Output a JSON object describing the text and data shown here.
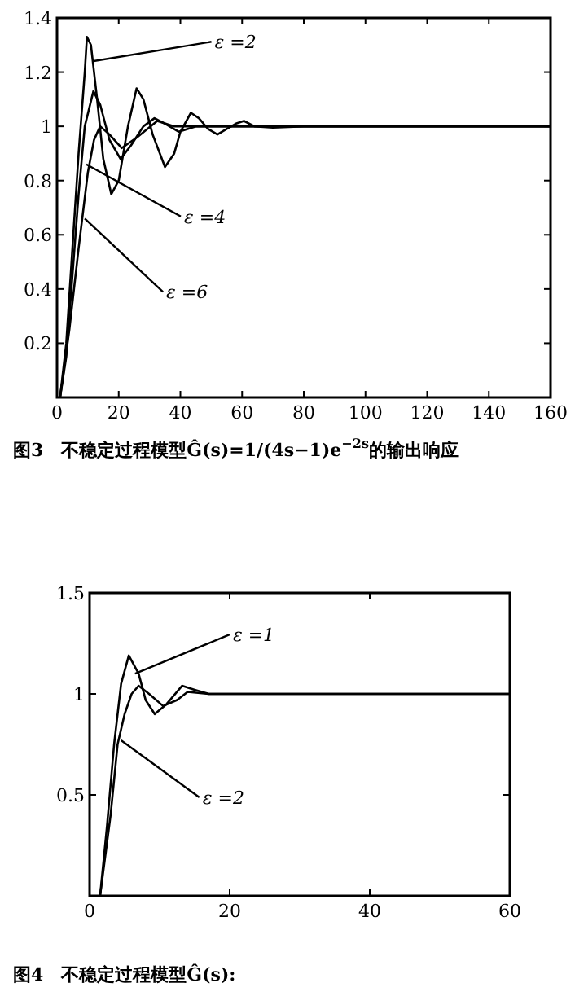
{
  "chart_data": [
    {
      "type": "line",
      "xlim": [
        0,
        160
      ],
      "xticks": [
        0,
        20,
        40,
        60,
        80,
        100,
        120,
        140,
        160
      ],
      "ylim": [
        0,
        1.4
      ],
      "yticks": [
        0.2,
        0.4,
        0.6,
        0.8,
        1,
        1.2,
        1.4
      ],
      "grid": false,
      "legend": false,
      "series": [
        {
          "color": "#000000",
          "x": [
            1,
            3,
            5,
            7,
            9,
            9.7,
            11,
            13,
            15,
            17.6,
            20,
            23,
            25.8,
            28,
            31,
            35,
            38,
            40,
            43.4,
            46,
            49,
            52,
            55,
            58,
            60.6,
            64,
            70,
            80,
            160
          ],
          "values": [
            0,
            0.2,
            0.55,
            0.9,
            1.2,
            1.33,
            1.3,
            1.1,
            0.88,
            0.75,
            0.8,
            1.0,
            1.14,
            1.1,
            0.97,
            0.85,
            0.9,
            0.98,
            1.05,
            1.03,
            0.99,
            0.97,
            0.99,
            1.01,
            1.02,
            1.0,
            0.995,
            1,
            1
          ]
        },
        {
          "color": "#000000",
          "x": [
            1,
            3,
            5,
            7,
            9,
            11.8,
            14,
            17,
            20.6,
            24,
            28,
            31.6,
            35,
            39.5,
            45,
            55,
            160
          ],
          "values": [
            0,
            0.15,
            0.45,
            0.75,
            1.0,
            1.13,
            1.08,
            0.95,
            0.88,
            0.93,
            1.0,
            1.03,
            1.01,
            0.98,
            1.0,
            1,
            1
          ]
        },
        {
          "color": "#000000",
          "x": [
            1,
            4,
            7,
            10,
            12,
            14,
            17,
            21,
            26,
            32.5,
            38,
            45,
            160
          ],
          "values": [
            0,
            0.25,
            0.55,
            0.83,
            0.95,
            1.0,
            0.97,
            0.92,
            0.96,
            1.02,
            1.0,
            1,
            1
          ]
        }
      ],
      "annotations": [
        {
          "text": "ε =2",
          "x": 11.5,
          "y": 1.24
        },
        {
          "text": "ε =4",
          "x": 9.5,
          "y": 0.86
        },
        {
          "text": "ε =6",
          "x": 9,
          "y": 0.66
        },
        "图3　不稳定过程模型Ĝ(s)=1/(4s−1)e$^{−2s}$的输出响应"
      ]
    },
    {
      "type": "line",
      "xlim": [
        0,
        60
      ],
      "xticks": [
        0,
        20,
        40,
        60
      ],
      "ylim": [
        0,
        1.5
      ],
      "yticks": [
        0.5,
        1,
        1.5
      ],
      "grid": false,
      "legend": false,
      "series": [
        {
          "color": "#000000",
          "x": [
            1.5,
            2.5,
            3.5,
            4.5,
            5.6,
            7,
            8,
            9.3,
            11,
            13.2,
            15,
            17,
            20,
            60
          ],
          "values": [
            0,
            0.35,
            0.75,
            1.05,
            1.19,
            1.1,
            0.97,
            0.9,
            0.95,
            1.04,
            1.02,
            1.0,
            1,
            1
          ]
        },
        {
          "color": "#000000",
          "x": [
            1.5,
            3,
            4,
            5,
            6,
            7,
            8.5,
            10.5,
            12.5,
            14,
            17,
            20,
            60
          ],
          "values": [
            0,
            0.4,
            0.75,
            0.9,
            1.0,
            1.04,
            1.0,
            0.94,
            0.97,
            1.01,
            1.0,
            1,
            1
          ]
        }
      ],
      "annotations": [
        {
          "text": "ε =1",
          "x": 6.5,
          "y": 1.1
        },
        {
          "text": "ε =2",
          "x": 4.5,
          "y": 0.77
        },
        "图4　不稳定过程模型Ĝ(s):"
      ]
    }
  ]
}
